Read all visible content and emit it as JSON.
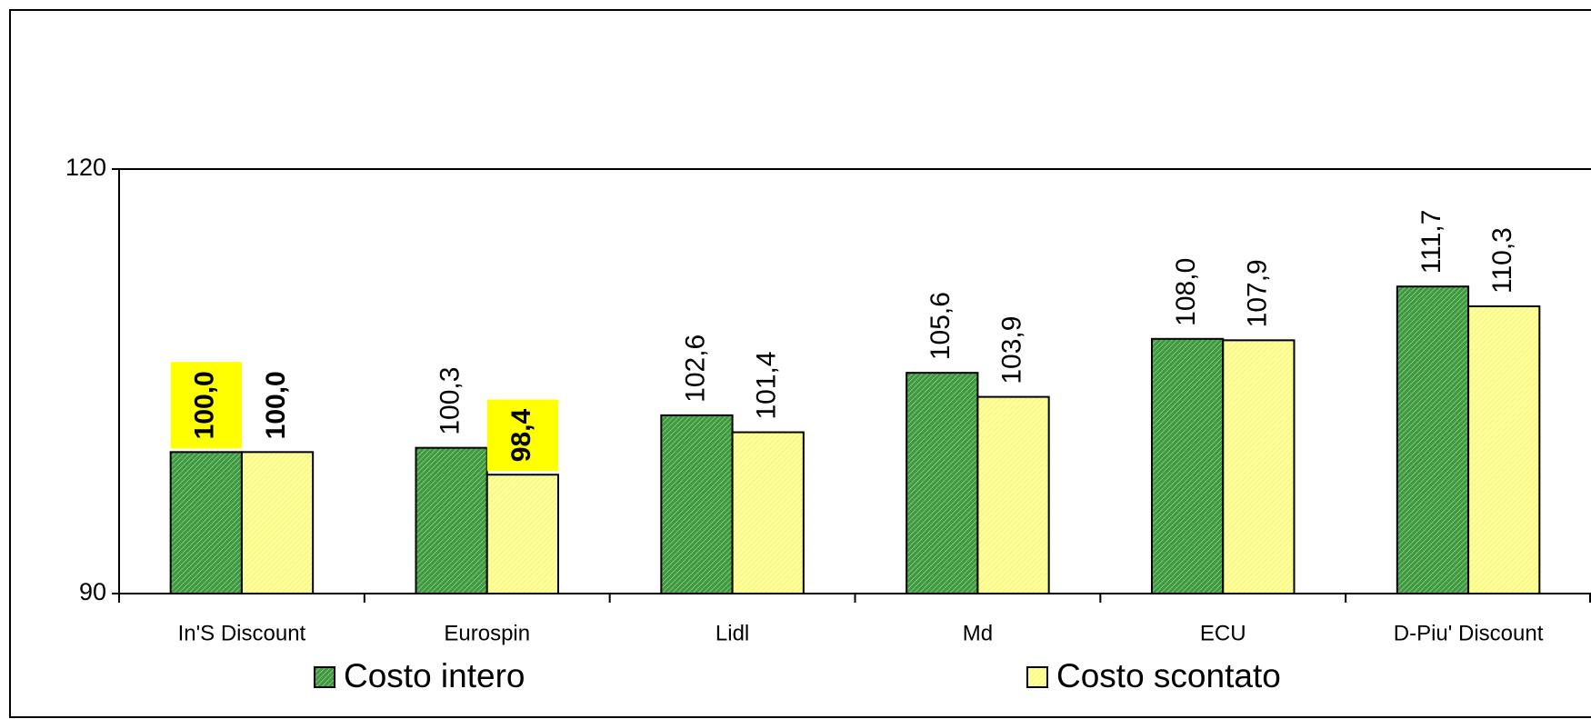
{
  "chart_data": {
    "type": "bar",
    "categories": [
      "In'S Discount",
      "Eurospin",
      "Lidl",
      "Md",
      "ECU",
      "D-Piu' Discount"
    ],
    "series": [
      {
        "name": "Costo intero",
        "color": "#3f9a3f",
        "values": [
          100.0,
          100.3,
          102.6,
          105.6,
          108.0,
          111.7
        ],
        "value_labels": [
          "100,0",
          "100,3",
          "102,6",
          "105,6",
          "108,0",
          "111,7"
        ],
        "label_style": [
          "highlight",
          "normal",
          "normal",
          "normal",
          "normal",
          "normal"
        ]
      },
      {
        "name": "Costo scontato",
        "color": "#ffff99",
        "values": [
          100.0,
          98.4,
          101.4,
          103.9,
          107.9,
          110.3
        ],
        "value_labels": [
          "100,0",
          "98,4",
          "101,4",
          "103,9",
          "107,9",
          "110,3"
        ],
        "label_style": [
          "bold",
          "highlight",
          "normal",
          "normal",
          "normal",
          "normal"
        ]
      }
    ],
    "highlight_color": "#ffff00",
    "ylim": [
      90,
      120
    ],
    "yticks": [
      90,
      120
    ],
    "grid": true,
    "legend": "bottom"
  }
}
